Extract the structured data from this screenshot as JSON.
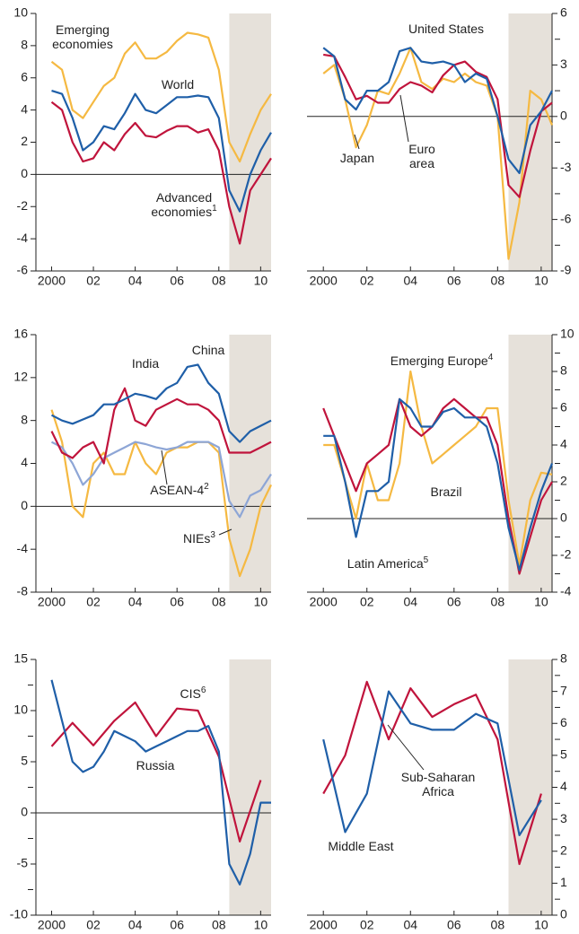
{
  "chart_data": [
    {
      "type": "line",
      "axis_side": "left",
      "xlim": [
        1999.25,
        2010.5
      ],
      "ylim": [
        -6,
        10
      ],
      "yticks": [
        -6,
        -4,
        -2,
        0,
        2,
        4,
        6,
        8,
        10
      ],
      "xticks": [
        {
          "value": 2000,
          "label": "2000"
        },
        {
          "value": 2002,
          "label": "02"
        },
        {
          "value": 2004,
          "label": "04"
        },
        {
          "value": 2006,
          "label": "06"
        },
        {
          "value": 2008,
          "label": "08"
        },
        {
          "value": 2010,
          "label": "10"
        }
      ],
      "shaded_x": [
        2008.5,
        2010.5
      ],
      "x": [
        2000,
        2000.5,
        2001,
        2001.5,
        2002,
        2002.5,
        2003,
        2003.5,
        2004,
        2004.5,
        2005,
        2005.5,
        2006,
        2006.5,
        2007,
        2007.5,
        2008,
        2008.5,
        2009,
        2009.5,
        2010,
        2010.5
      ],
      "series": [
        {
          "name": "Emerging economies",
          "color": "#f5b942",
          "values": [
            7,
            6.5,
            4,
            3.5,
            4.5,
            5.5,
            6,
            7.5,
            8.2,
            7.2,
            7.2,
            7.6,
            8.3,
            8.8,
            8.7,
            8.5,
            6.5,
            2,
            0.8,
            2.5,
            4,
            5
          ]
        },
        {
          "name": "World",
          "color": "#1f5fa8",
          "values": [
            5.2,
            5,
            3.5,
            1.5,
            2,
            3,
            2.8,
            3.8,
            5,
            4,
            3.8,
            4.3,
            4.8,
            4.8,
            4.9,
            4.8,
            3.5,
            -1,
            -2.3,
            0,
            1.5,
            2.6
          ]
        },
        {
          "name": "Advanced economies",
          "footnote": "1",
          "color": "#c0143c",
          "values": [
            4.5,
            4,
            2,
            0.8,
            1,
            2,
            1.5,
            2.5,
            3.2,
            2.4,
            2.3,
            2.7,
            3,
            3,
            2.6,
            2.8,
            1.5,
            -2,
            -4.3,
            -1,
            0,
            1
          ]
        }
      ]
    },
    {
      "type": "line",
      "axis_side": "right",
      "xlim": [
        1999.25,
        2010.5
      ],
      "ylim": [
        -9,
        6
      ],
      "yticks": [
        -9,
        -6,
        -3,
        0,
        3,
        6
      ],
      "yminorticks": [
        -7.5,
        -4.5,
        -1.5,
        1.5,
        4.5
      ],
      "xticks": [
        {
          "value": 2000,
          "label": "2000"
        },
        {
          "value": 2002,
          "label": "02"
        },
        {
          "value": 2004,
          "label": "04"
        },
        {
          "value": 2006,
          "label": "06"
        },
        {
          "value": 2008,
          "label": "08"
        },
        {
          "value": 2010,
          "label": "10"
        }
      ],
      "shaded_x": [
        2008.5,
        2010.5
      ],
      "x": [
        2000,
        2000.5,
        2001,
        2001.5,
        2002,
        2002.5,
        2003,
        2003.5,
        2004,
        2004.5,
        2005,
        2005.5,
        2006,
        2006.5,
        2007,
        2007.5,
        2008,
        2008.5,
        2009,
        2009.5,
        2010,
        2010.5
      ],
      "series": [
        {
          "name": "Japan",
          "color": "#f5b942",
          "values": [
            2.5,
            3,
            1,
            -1.8,
            -0.5,
            1.5,
            1.3,
            2.5,
            4,
            2,
            1.6,
            2.2,
            2,
            2.5,
            2,
            1.8,
            0,
            -8.3,
            -5,
            1.5,
            1,
            -0.5
          ]
        },
        {
          "name": "Euro area",
          "color": "#c0143c",
          "values": [
            3.6,
            3.5,
            2.3,
            1,
            1.2,
            0.8,
            0.8,
            1.6,
            2,
            1.8,
            1.4,
            2.4,
            3,
            3.2,
            2.6,
            2.3,
            1,
            -4,
            -4.7,
            -2,
            0.3,
            0.8
          ]
        },
        {
          "name": "United States",
          "color": "#1f5fa8",
          "values": [
            4,
            3.5,
            1,
            0.4,
            1.5,
            1.5,
            2,
            3.8,
            4,
            3.2,
            3.1,
            3.2,
            3,
            2,
            2.5,
            2.2,
            0,
            -2.5,
            -3.3,
            -0.5,
            0.3,
            1.5
          ]
        }
      ]
    },
    {
      "type": "line",
      "axis_side": "left",
      "xlim": [
        1999.25,
        2010.5
      ],
      "ylim": [
        -8,
        16
      ],
      "yticks": [
        -8,
        -4,
        0,
        4,
        8,
        12,
        16
      ],
      "xticks": [
        {
          "value": 2000,
          "label": "2000"
        },
        {
          "value": 2002,
          "label": "02"
        },
        {
          "value": 2004,
          "label": "04"
        },
        {
          "value": 2006,
          "label": "06"
        },
        {
          "value": 2008,
          "label": "08"
        },
        {
          "value": 2010,
          "label": "10"
        }
      ],
      "shaded_x": [
        2008.5,
        2010.5
      ],
      "x": [
        2000,
        2000.5,
        2001,
        2001.5,
        2002,
        2002.5,
        2003,
        2003.5,
        2004,
        2004.5,
        2005,
        2005.5,
        2006,
        2006.5,
        2007,
        2007.5,
        2008,
        2008.5,
        2009,
        2009.5,
        2010,
        2010.5
      ],
      "series": [
        {
          "name": "NIEs",
          "footnote": "3",
          "color": "#f5b942",
          "values": [
            9,
            6,
            0,
            -1,
            4,
            5,
            3,
            3,
            6,
            4,
            3,
            5,
            5.5,
            5.5,
            6,
            6,
            5,
            -3,
            -6.5,
            -4,
            0,
            2
          ]
        },
        {
          "name": "ASEAN-4",
          "footnote": "2",
          "color": "#8ea6d6",
          "values": [
            6,
            5.5,
            4,
            2,
            3,
            4.5,
            5,
            5.5,
            6,
            5.8,
            5.5,
            5.3,
            5.5,
            6,
            6,
            6,
            5.5,
            0.5,
            -1,
            1,
            1.5,
            3
          ]
        },
        {
          "name": "India",
          "color": "#c0143c",
          "values": [
            7,
            5,
            4.5,
            5.5,
            6,
            4,
            9,
            11,
            8,
            7.5,
            9,
            9.5,
            10,
            9.5,
            9.5,
            9,
            8,
            5,
            5,
            5,
            5.5,
            6
          ]
        },
        {
          "name": "China",
          "color": "#1f5fa8",
          "values": [
            8.5,
            8,
            7.7,
            8.1,
            8.5,
            9.5,
            9.5,
            10,
            10.5,
            10.3,
            10,
            11,
            11.5,
            13,
            13.2,
            11.5,
            10.5,
            7,
            6,
            7,
            7.5,
            8
          ]
        }
      ]
    },
    {
      "type": "line",
      "axis_side": "right",
      "xlim": [
        1999.25,
        2010.5
      ],
      "ylim": [
        -4,
        10
      ],
      "yticks": [
        -4,
        -2,
        0,
        2,
        4,
        6,
        8,
        10
      ],
      "yminorticks": [
        -3,
        -1,
        1,
        3,
        5,
        7,
        9
      ],
      "xticks": [
        {
          "value": 2000,
          "label": "2000"
        },
        {
          "value": 2002,
          "label": "02"
        },
        {
          "value": 2004,
          "label": "04"
        },
        {
          "value": 2006,
          "label": "06"
        },
        {
          "value": 2008,
          "label": "08"
        },
        {
          "value": 2010,
          "label": "10"
        }
      ],
      "shaded_x": [
        2008.5,
        2010.5
      ],
      "x": [
        2000,
        2000.5,
        2001,
        2001.5,
        2002,
        2002.5,
        2003,
        2003.5,
        2004,
        2004.5,
        2005,
        2005.5,
        2006,
        2006.5,
        2007,
        2007.5,
        2008,
        2008.5,
        2009,
        2009.5,
        2010,
        2010.5
      ],
      "series": [
        {
          "name": "Brazil",
          "color": "#f5b942",
          "values": [
            4,
            4,
            2,
            0,
            3,
            1,
            1,
            3,
            8,
            5,
            3,
            3.5,
            4,
            4.5,
            5,
            6,
            6,
            1,
            -2.5,
            1,
            2.5,
            2.4
          ]
        },
        {
          "name": "Emerging Europe",
          "footnote": "4",
          "color": "#c0143c",
          "values": [
            6,
            4.5,
            3,
            1.5,
            3,
            3.5,
            4,
            6.5,
            5,
            4.5,
            5,
            6,
            6.5,
            6,
            5.5,
            5.5,
            4,
            0,
            -3,
            -1,
            1,
            2
          ]
        },
        {
          "name": "Latin America",
          "footnote": "5",
          "color": "#1f5fa8",
          "values": [
            4.5,
            4.5,
            2,
            -1,
            1.5,
            1.5,
            2,
            6.5,
            6,
            5,
            5,
            5.8,
            6,
            5.5,
            5.5,
            5,
            3,
            -0.5,
            -2.8,
            -0.5,
            1.5,
            3
          ]
        }
      ]
    },
    {
      "type": "line",
      "axis_side": "left",
      "xlim": [
        1999.25,
        2010.5
      ],
      "ylim": [
        -10,
        15
      ],
      "yticks": [
        -10,
        -5,
        0,
        5,
        10,
        15
      ],
      "yminorticks": [
        -7.5,
        -2.5,
        2.5,
        7.5,
        12.5
      ],
      "xticks": [
        {
          "value": 2000,
          "label": "2000"
        },
        {
          "value": 2002,
          "label": "02"
        },
        {
          "value": 2004,
          "label": "04"
        },
        {
          "value": 2006,
          "label": "06"
        },
        {
          "value": 2008,
          "label": "08"
        },
        {
          "value": 2010,
          "label": "10"
        }
      ],
      "shaded_x": [
        2008.5,
        2010.5
      ],
      "series": [
        {
          "name": "CIS",
          "footnote": "6",
          "color": "#c0143c",
          "x": [
            2000,
            2001,
            2002,
            2003,
            2004,
            2005,
            2006,
            2007,
            2008,
            2009,
            2010
          ],
          "values": [
            6.5,
            8.8,
            6.6,
            9,
            10.8,
            7.5,
            10.2,
            10,
            5.5,
            -2.8,
            3.2
          ]
        },
        {
          "name": "Russia",
          "color": "#1f5fa8",
          "x": [
            2000,
            2000.5,
            2001,
            2001.5,
            2002,
            2002.5,
            2003,
            2003.5,
            2004,
            2004.5,
            2005,
            2005.5,
            2006,
            2006.5,
            2007,
            2007.5,
            2008,
            2008.5,
            2009,
            2009.5,
            2010,
            2010.5
          ],
          "values": [
            13,
            9,
            5,
            4,
            4.5,
            6,
            8,
            7.5,
            7,
            6,
            6.5,
            7,
            7.5,
            8,
            8,
            8.5,
            6,
            -5,
            -7,
            -4,
            1,
            1
          ]
        }
      ]
    },
    {
      "type": "line",
      "axis_side": "right",
      "xlim": [
        1999.25,
        2010.5
      ],
      "ylim": [
        0,
        8
      ],
      "yticks": [
        0,
        1,
        2,
        3,
        4,
        5,
        6,
        7,
        8
      ],
      "yminorticks": [
        0.5,
        1.5,
        2.5,
        3.5,
        4.5,
        5.5,
        6.5,
        7.5
      ],
      "xticks": [
        {
          "value": 2000,
          "label": "2000"
        },
        {
          "value": 2002,
          "label": "02"
        },
        {
          "value": 2004,
          "label": "04"
        },
        {
          "value": 2006,
          "label": "06"
        },
        {
          "value": 2008,
          "label": "08"
        },
        {
          "value": 2010,
          "label": "10"
        }
      ],
      "shaded_x": [
        2008.5,
        2010.5
      ],
      "x": [
        2000,
        2001,
        2002,
        2003,
        2004,
        2005,
        2006,
        2007,
        2008,
        2009,
        2010
      ],
      "series": [
        {
          "name": "Sub-Saharan Africa",
          "color": "#c0143c",
          "values": [
            3.8,
            5,
            7.3,
            5.5,
            7.1,
            6.2,
            6.6,
            6.9,
            5.5,
            1.6,
            3.8
          ]
        },
        {
          "name": "Middle East",
          "color": "#1f5fa8",
          "values": [
            5.5,
            2.6,
            3.8,
            7,
            6,
            5.8,
            5.8,
            6.3,
            6,
            2.5,
            3.6
          ]
        }
      ]
    }
  ]
}
